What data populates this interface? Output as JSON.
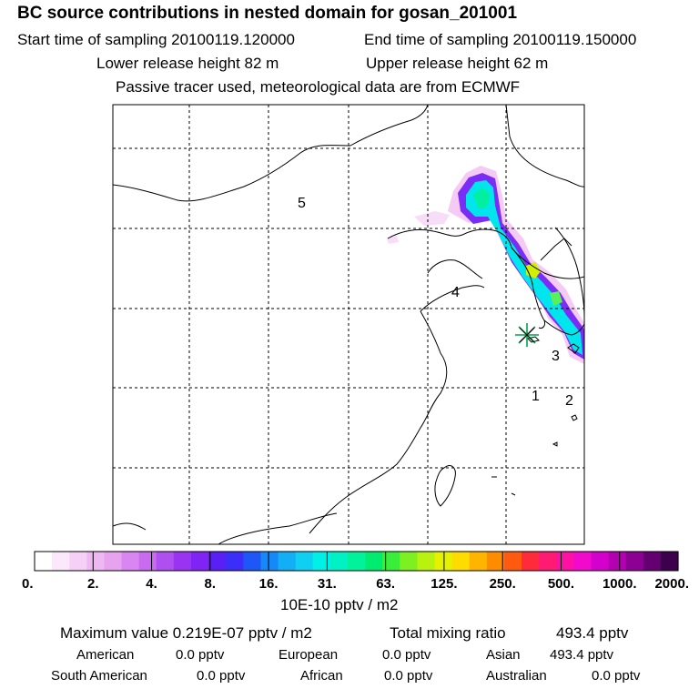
{
  "header": {
    "title": "BC  source contributions in nested domain for gosan_201001",
    "start_label": "Start time of sampling 20100119.120000",
    "end_label": "End time of sampling 20100119.150000",
    "lower_label": "Lower release height   82 m",
    "upper_label": "Upper release height   62 m",
    "note": "Passive tracer used, meteorological data are from ECMWF"
  },
  "colors": {
    "scale": [
      "#ffffff",
      "#fbe8fb",
      "#f6d0f6",
      "#eeb8f2",
      "#e7a3f0",
      "#d985f2",
      "#c86bf0",
      "#b04ff0",
      "#9a33f2",
      "#7f24f4",
      "#5a1ef6",
      "#3a2ef8",
      "#1e56f8",
      "#1688f8",
      "#12aef6",
      "#0fd0f2",
      "#00f0e8",
      "#00f2c4",
      "#00f29a",
      "#00ec70",
      "#38ee3a",
      "#7cf020",
      "#b8f20e",
      "#e4f200",
      "#ffdc00",
      "#ffb400",
      "#ff8c00",
      "#ff5a10",
      "#ff2a3a",
      "#ff1a72",
      "#ff10a4",
      "#f20acc",
      "#d400cc",
      "#b400b0",
      "#8c0094",
      "#640070",
      "#3c004c"
    ],
    "map_lines": "#000000",
    "plume_outer": "#f4c4f4",
    "plume_mid": "#7b2cf5",
    "plume_inner": "#00e6ec",
    "plume_core": "#00f0a0",
    "plume_hot": "#d0f000",
    "station_marker": "#00a050"
  },
  "chart_data": {
    "type": "heatmap",
    "title": "BC  source contributions in nested domain for gosan_201001",
    "colorbar": {
      "tick_labels": [
        "0.",
        "2.",
        "4.",
        "8.",
        "16.",
        "31.",
        "63.",
        "125.",
        "250.",
        "500.",
        "1000.",
        "2000."
      ],
      "unit_label": "10E-10 pptv / m2"
    },
    "region_labels": [
      "1",
      "2",
      "3",
      "4",
      "5"
    ],
    "station": "gosan"
  },
  "stats": {
    "max_label": "Maximum value  0.219E-07 pptv / m2",
    "total_label": "Total mixing ratio",
    "total_value": "493.4 pptv",
    "american_label": "American",
    "american_value": "0.0 pptv",
    "european_label": "European",
    "european_value": "0.0 pptv",
    "asian_label": "Asian",
    "asian_value": "493.4 pptv",
    "south_american_label": "South American",
    "south_american_value": "0.0 pptv",
    "african_label": "African",
    "african_value": "0.0 pptv",
    "australian_label": "Australian",
    "australian_value": "0.0 pptv"
  }
}
